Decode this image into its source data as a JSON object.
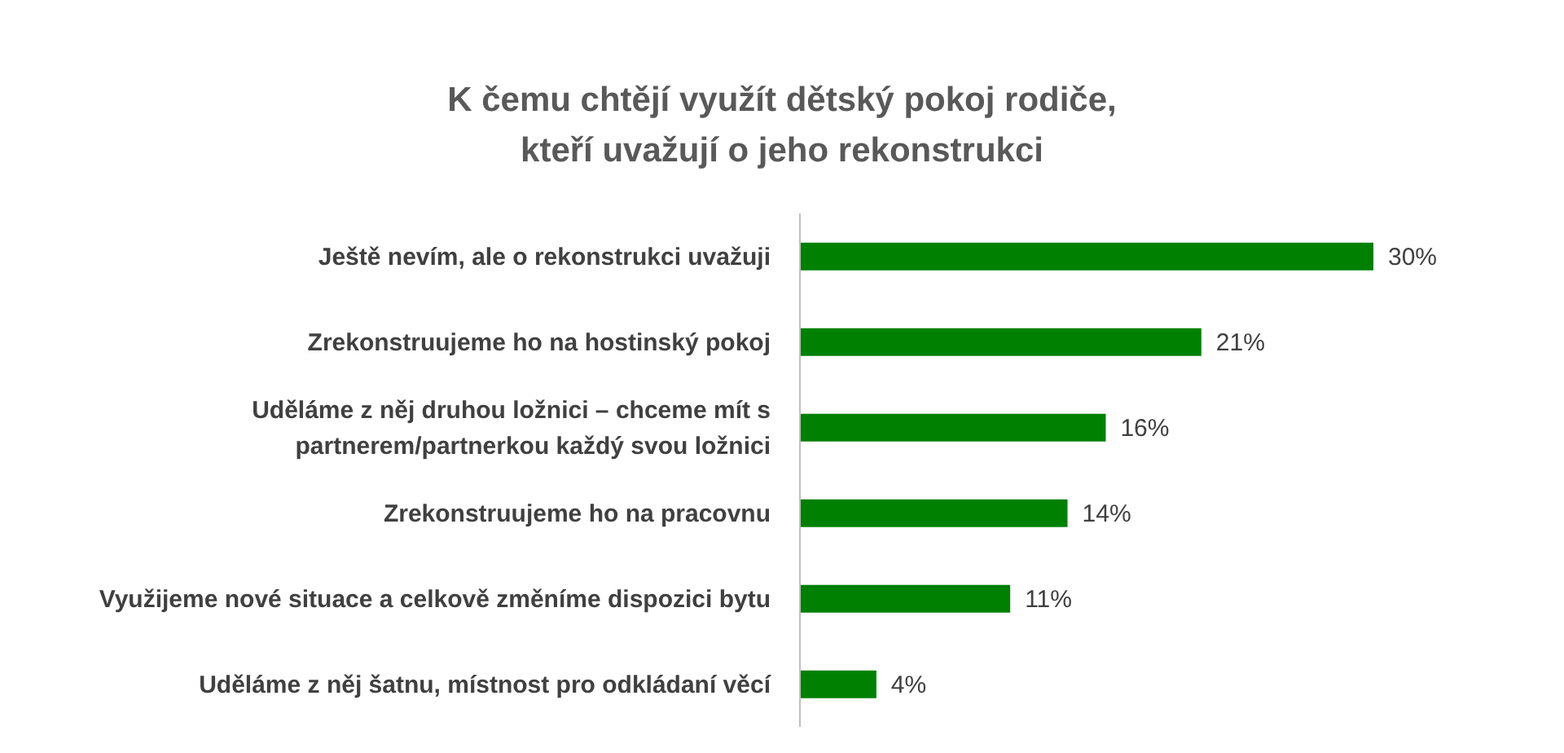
{
  "chart_data": {
    "type": "bar",
    "orientation": "horizontal",
    "title": "K čemu chtějí využít dětský pokoj rodiče,\nkteří uvažují o jeho rekonstrukci",
    "categories": [
      "Ještě nevím, ale o rekonstrukci uvažuji",
      "Zrekonstruujeme ho na hostinský pokoj",
      "Uděláme z něj druhou ložnici – chceme mít s partnerem/partnerkou každý svou ložnici",
      "Zrekonstruujeme ho na pracovnu",
      "Využijeme nové situace a celkově změníme dispozici bytu",
      "Uděláme z něj šatnu, místnost pro odkládaní věcí"
    ],
    "values": [
      30,
      21,
      16,
      14,
      11,
      4
    ],
    "value_labels": [
      "30%",
      "21%",
      "16%",
      "14%",
      "11%",
      "4%"
    ],
    "color": "#008000"
  }
}
